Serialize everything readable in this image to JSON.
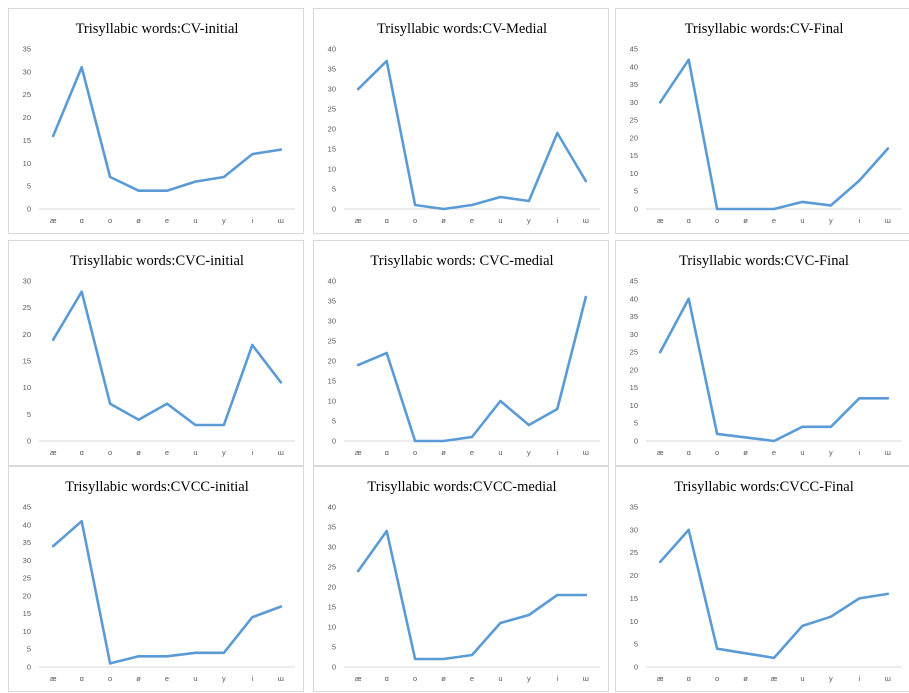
{
  "colors": {
    "line": "#5b9bd5",
    "axis": "#d9d9d9",
    "tick_text": "#595959"
  },
  "chart_data": [
    {
      "type": "line",
      "title": "Trisyllabic words:CV-initial",
      "categories": [
        "æ",
        "ɑ",
        "o",
        "ø",
        "e",
        "u",
        "y",
        "i",
        "ɯ"
      ],
      "values": [
        16,
        31,
        7,
        4,
        4,
        6,
        7,
        12,
        13
      ],
      "ylim": [
        0,
        35
      ],
      "ystep": 5,
      "grid": false
    },
    {
      "type": "line",
      "title": "Trisyllabic words:CV-Medial",
      "categories": [
        "æ",
        "ɑ",
        "o",
        "ø",
        "e",
        "u",
        "y",
        "i",
        "ɯ"
      ],
      "values": [
        30,
        37,
        1,
        0,
        1,
        3,
        2,
        19,
        7
      ],
      "ylim": [
        0,
        40
      ],
      "ystep": 5,
      "grid": false
    },
    {
      "type": "line",
      "title": "Trisyllabic words:CV-Final",
      "categories": [
        "æ",
        "ɑ",
        "o",
        "ø",
        "e",
        "u",
        "y",
        "i",
        "ɯ"
      ],
      "values": [
        30,
        42,
        0,
        0,
        0,
        2,
        1,
        8,
        17
      ],
      "ylim": [
        0,
        45
      ],
      "ystep": 5,
      "grid": false
    },
    {
      "type": "line",
      "title": "Trisyllabic words:CVC-initial",
      "categories": [
        "æ",
        "ɑ",
        "o",
        "ø",
        "e",
        "u",
        "y",
        "i",
        "ɯ"
      ],
      "values": [
        19,
        28,
        7,
        4,
        7,
        3,
        3,
        18,
        11
      ],
      "ylim": [
        0,
        30
      ],
      "ystep": 5,
      "grid": false
    },
    {
      "type": "line",
      "title": "Trisyllabic words: CVC-medial",
      "categories": [
        "æ",
        "ɑ",
        "o",
        "ø",
        "e",
        "u",
        "y",
        "i",
        "ɯ"
      ],
      "values": [
        19,
        22,
        0,
        0,
        1,
        10,
        4,
        8,
        36
      ],
      "ylim": [
        0,
        40
      ],
      "ystep": 5,
      "grid": false
    },
    {
      "type": "line",
      "title": "Trisyllabic words:CVC-Final",
      "categories": [
        "æ",
        "ɑ",
        "o",
        "ø",
        "e",
        "u",
        "y",
        "i",
        "ɯ"
      ],
      "values": [
        25,
        40,
        2,
        1,
        0,
        4,
        4,
        12,
        12
      ],
      "ylim": [
        0,
        45
      ],
      "ystep": 5,
      "grid": false
    },
    {
      "type": "line",
      "title": "Trisyllabic words:CVCC-initial",
      "categories": [
        "æ",
        "ɑ",
        "o",
        "ø",
        "e",
        "u",
        "y",
        "i",
        "ɯ"
      ],
      "values": [
        34,
        41,
        1,
        3,
        3,
        4,
        4,
        14,
        17
      ],
      "ylim": [
        0,
        45
      ],
      "ystep": 5,
      "grid": false
    },
    {
      "type": "line",
      "title": "Trisyllabic words:CVCC-medial",
      "categories": [
        "æ",
        "ɑ",
        "o",
        "ø",
        "e",
        "u",
        "y",
        "i",
        "ɯ"
      ],
      "values": [
        24,
        34,
        2,
        2,
        3,
        11,
        13,
        18,
        18
      ],
      "ylim": [
        0,
        40
      ],
      "ystep": 5,
      "grid": false
    },
    {
      "type": "line",
      "title": "Trisyllabic words:CVCC-Final",
      "categories": [
        "æ",
        "ɑ",
        "o",
        "ø",
        "æ",
        "u",
        "y",
        "i",
        "ɯ"
      ],
      "values": [
        23,
        30,
        4,
        3,
        2,
        9,
        11,
        15,
        16
      ],
      "ylim": [
        0,
        35
      ],
      "ystep": 5,
      "grid": false
    }
  ]
}
